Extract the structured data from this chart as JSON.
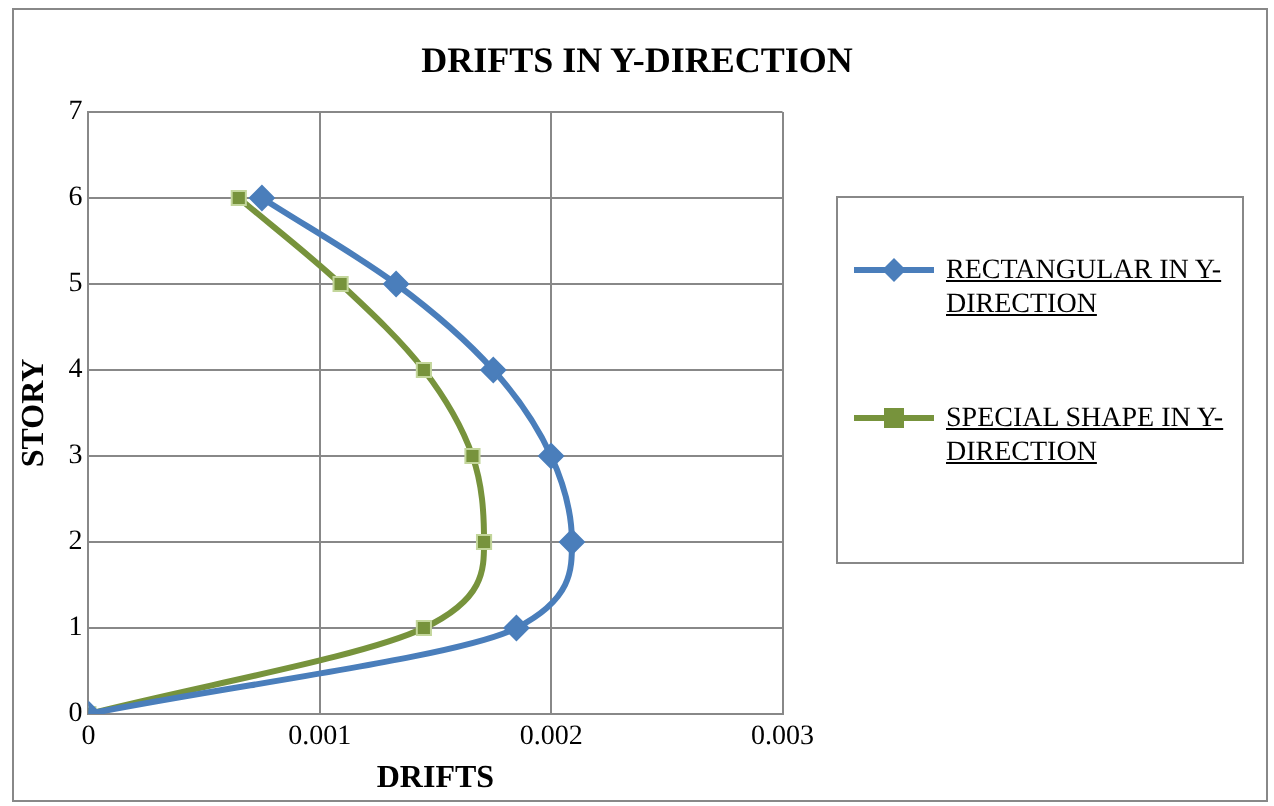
{
  "chart_data": {
    "type": "line",
    "title": "DRIFTS IN Y-DIRECTION",
    "xlabel": "DRIFTS",
    "ylabel": "STORY",
    "xlim": [
      0,
      0.003
    ],
    "xticks": [
      0,
      0.001,
      0.002,
      0.003
    ],
    "ylim": [
      0,
      7
    ],
    "yticks": [
      0,
      1,
      2,
      3,
      4,
      5,
      6,
      7
    ],
    "grid": true,
    "legend": "right",
    "series": [
      {
        "name": "RECTANGULAR IN Y-DIRECTION",
        "color": "#4a7ebb",
        "marker": "diamond",
        "x": [
          0,
          0.00185,
          0.00209,
          0.002,
          0.00175,
          0.00133,
          0.00075
        ],
        "values": [
          0,
          1,
          2,
          3,
          4,
          5,
          6
        ]
      },
      {
        "name": "SPECIAL SHAPE IN Y-DIRECTION",
        "color": "#77933c",
        "marker": "square",
        "x": [
          0,
          0.00145,
          0.00171,
          0.00166,
          0.00145,
          0.00109,
          0.00065
        ],
        "values": [
          0,
          1,
          2,
          3,
          4,
          5,
          6
        ]
      }
    ]
  }
}
